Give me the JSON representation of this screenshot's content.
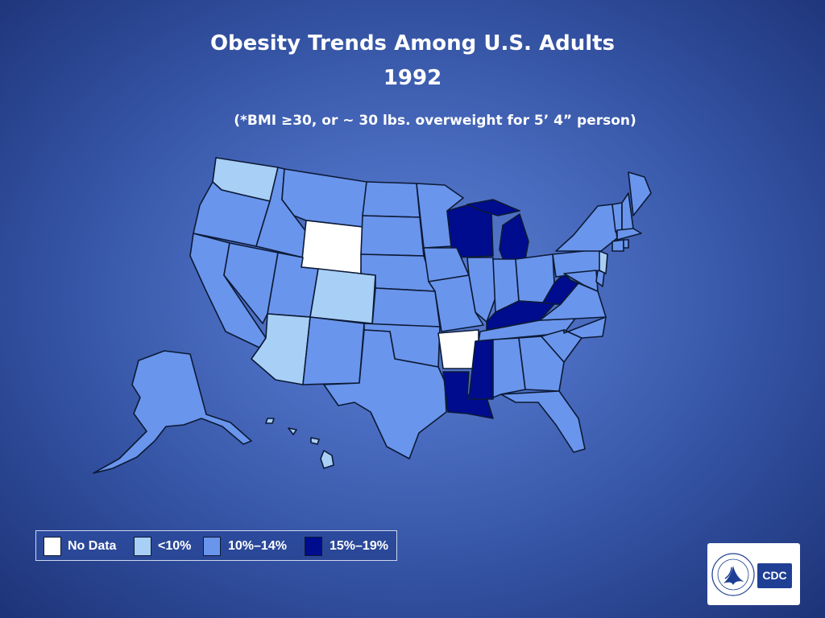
{
  "title": {
    "line1": "Obesity Trends Among U.S. Adults",
    "line2": "1992",
    "subtitle": "(*BMI ≥30, or ~ 30 lbs. overweight for 5’ 4” person)"
  },
  "legend": {
    "items": [
      {
        "label": "No Data",
        "color": "#ffffff"
      },
      {
        "label": "<10%",
        "color": "#a8cff5"
      },
      {
        "label": "10%–14%",
        "color": "#6a95ec"
      },
      {
        "label": "15%–19%",
        "color": "#000c8e"
      }
    ]
  },
  "map_data": {
    "categories": {
      "No Data": [
        "Wyoming",
        "Arkansas"
      ],
      "<10%": [
        "Washington",
        "Colorado",
        "Arizona",
        "New Jersey",
        "Hawaii"
      ],
      "10%–14%": [
        "Oregon",
        "California",
        "Nevada",
        "Idaho",
        "Montana",
        "Utah",
        "New Mexico",
        "North Dakota",
        "South Dakota",
        "Nebraska",
        "Kansas",
        "Oklahoma",
        "Texas",
        "Minnesota",
        "Iowa",
        "Missouri",
        "Illinois",
        "Indiana",
        "Ohio",
        "Tennessee",
        "Alabama",
        "Georgia",
        "Florida",
        "South Carolina",
        "North Carolina",
        "Virginia",
        "Maryland",
        "Delaware",
        "Pennsylvania",
        "New York",
        "Vermont",
        "New Hampshire",
        "Maine",
        "Massachusetts",
        "Connecticut",
        "Rhode Island",
        "Alaska"
      ],
      "15%–19%": [
        "Wisconsin",
        "Michigan",
        "Kentucky",
        "West Virginia",
        "Mississippi",
        "Louisiana"
      ]
    }
  },
  "logo": {
    "text": "CDC",
    "icon": "hhs-eagle-icon"
  }
}
